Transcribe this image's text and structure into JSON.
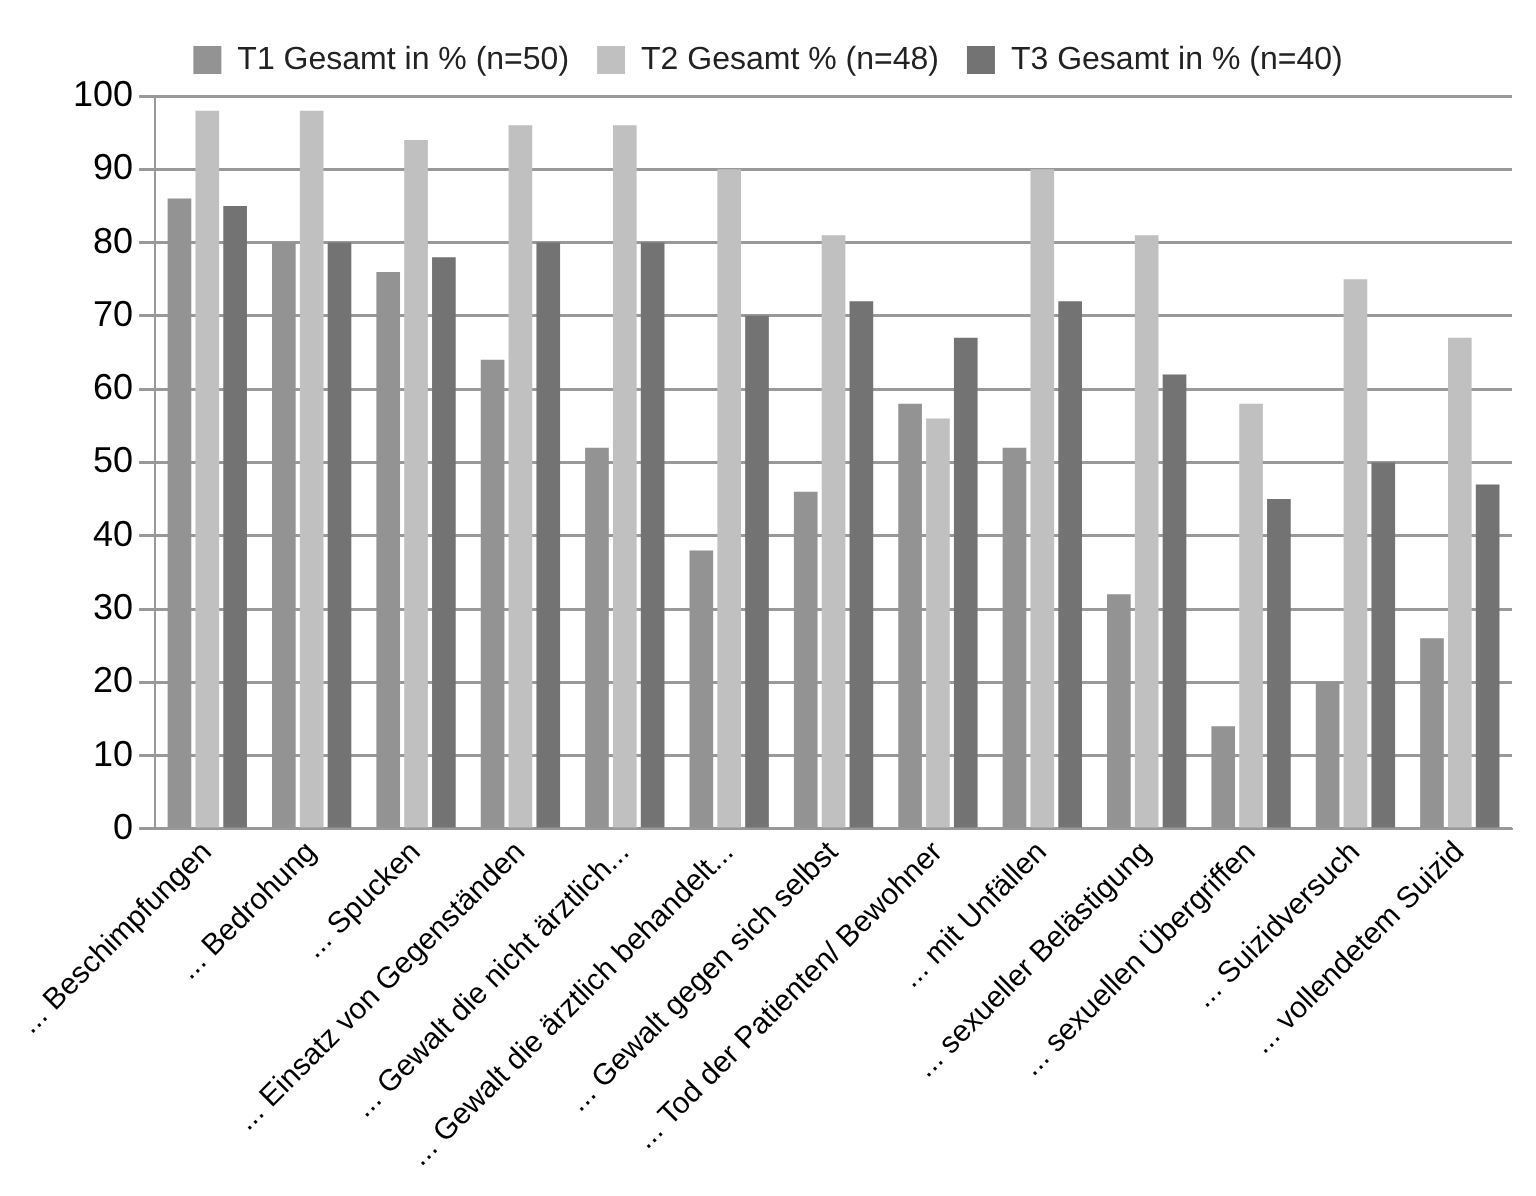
{
  "chart_data": {
    "type": "bar",
    "categories": [
      "... Beschimpfungen",
      "... Bedrohung",
      "... Spucken",
      "... Einsatz von Gegenständen",
      "... Gewalt die nicht ärztlich...",
      "... Gewalt die ärztlich behandelt...",
      "... Gewalt gegen sich selbst",
      "... Tod der Patienten/ Bewohner",
      "... mit Unfällen",
      "... sexueller Belästigung",
      "... sexuellen Übergriffen",
      "... Suizidversuch",
      "... vollendetem Suizid"
    ],
    "series": [
      {
        "name": "T1 Gesamt in % (n=50)",
        "color": "#939393",
        "values": [
          86,
          80,
          76,
          64,
          52,
          38,
          46,
          58,
          52,
          32,
          14,
          20,
          26
        ]
      },
      {
        "name": "T2 Gesamt % (n=48)",
        "color": "#c0c0c0",
        "values": [
          98,
          98,
          94,
          96,
          96,
          90,
          81,
          56,
          90,
          81,
          58,
          75,
          67
        ]
      },
      {
        "name": "T3 Gesamt in % (n=40)",
        "color": "#737373",
        "values": [
          85,
          80,
          78,
          80,
          80,
          70,
          72,
          67,
          72,
          62,
          45,
          50,
          47
        ]
      }
    ],
    "ylim": [
      0,
      100
    ],
    "yticks": [
      0,
      10,
      20,
      30,
      40,
      50,
      60,
      70,
      80,
      90,
      100
    ],
    "grid": "y",
    "legend": "top"
  }
}
